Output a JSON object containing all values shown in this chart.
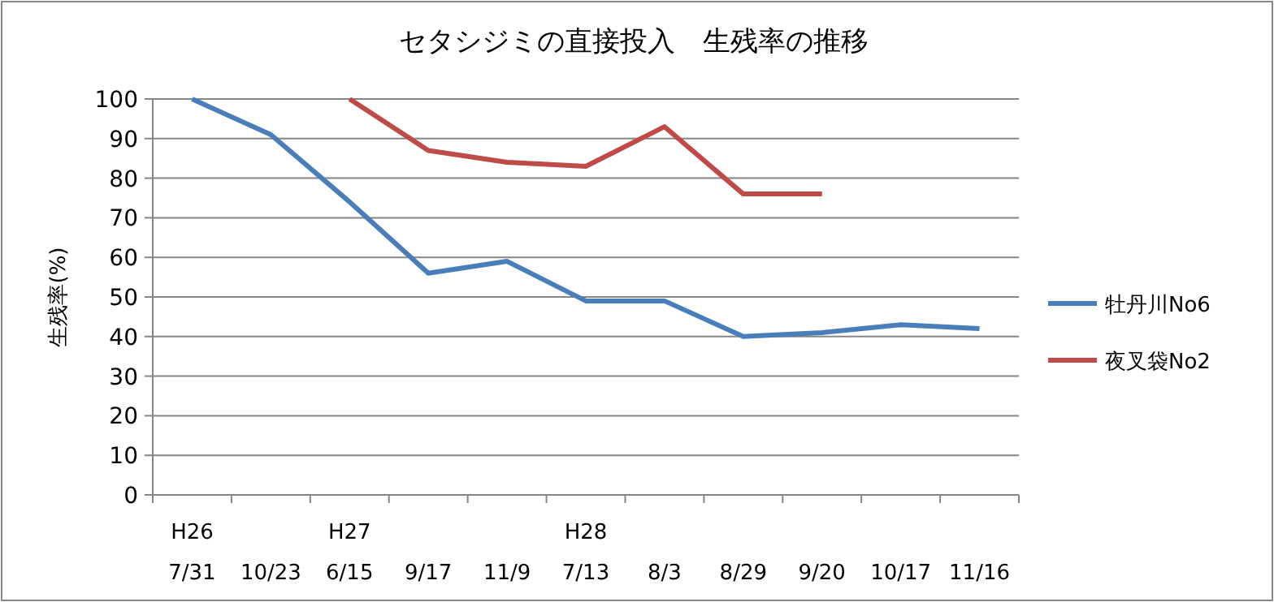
{
  "chart_data": {
    "type": "line",
    "title": "セタシジミの直接投入　生残率の推移",
    "ylabel": "生残率(%)",
    "categories": [
      "H26\n7/31",
      "10/23",
      "H27\n6/15",
      "9/17",
      "11/9",
      "H28\n7/13",
      "8/3",
      "8/29",
      "9/20",
      "10/17",
      "11/16"
    ],
    "ylim": [
      0,
      100
    ],
    "yticks": [
      0,
      10,
      20,
      30,
      40,
      50,
      60,
      70,
      80,
      90,
      100
    ],
    "grid": "y",
    "legend": "right",
    "marker": "none",
    "line_style": "solid",
    "series": [
      {
        "name": "牡丹川No6",
        "color": "#4a7ebb",
        "values": [
          100,
          91,
          74,
          56,
          59,
          49,
          49,
          40,
          41,
          43,
          42
        ]
      },
      {
        "name": "夜叉袋No2",
        "color": "#be4b48",
        "values": [
          null,
          null,
          100,
          87,
          84,
          83,
          93,
          76,
          76,
          null,
          null
        ]
      }
    ]
  }
}
